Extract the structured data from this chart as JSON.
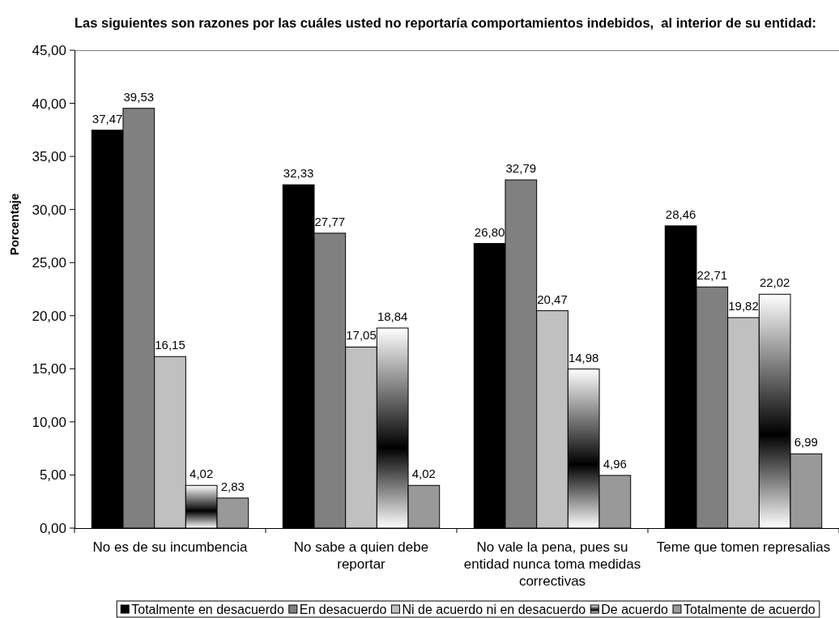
{
  "chart_data": {
    "type": "bar",
    "title": "Las siguientes son razones por las cuáles usted no reportaría comportamientos indebidos,  al interior de su entidad:",
    "ylabel": "Porcentaje",
    "categories": [
      "No es de su incumbencia",
      "No sabe a quien debe reportar",
      "No vale la pena, pues su entidad nunca toma medidas correctivas",
      "Teme que tomen represalias"
    ],
    "series": [
      {
        "name": "Totalmente en desacuerdo",
        "color": "#000000",
        "values": [
          37.47,
          32.33,
          26.8,
          28.46
        ],
        "value_labels": [
          "37,47",
          "32,33",
          "26,80",
          "28,46"
        ]
      },
      {
        "name": "En desacuerdo",
        "color": "#808080",
        "values": [
          39.53,
          27.77,
          32.79,
          22.71
        ],
        "value_labels": [
          "39,53",
          "27,77",
          "32,79",
          "22,71"
        ]
      },
      {
        "name": "Ni de acuerdo ni en desacuerdo",
        "color": "#c0c0c0",
        "values": [
          16.15,
          17.05,
          20.47,
          19.82
        ],
        "value_labels": [
          "16,15",
          "17,05",
          "20,47",
          "19,82"
        ]
      },
      {
        "name": "De acuerdo",
        "color": "#000000",
        "values": [
          4.02,
          18.84,
          14.98,
          22.02
        ],
        "value_labels": [
          "4,02",
          "18,84",
          "14,98",
          "22,02"
        ]
      },
      {
        "name": "Totalmente de acuerdo",
        "color": "#999999",
        "values": [
          2.83,
          4.02,
          4.96,
          6.99
        ],
        "value_labels": [
          "2,83",
          "4,02",
          "4,96",
          "6,99"
        ]
      }
    ],
    "ylim": [
      0,
      45
    ],
    "yticks": [
      {
        "value": 0,
        "label": "0,00"
      },
      {
        "value": 5,
        "label": "5,00"
      },
      {
        "value": 10,
        "label": "10,00"
      },
      {
        "value": 15,
        "label": "15,00"
      },
      {
        "value": 20,
        "label": "20,00"
      },
      {
        "value": 25,
        "label": "25,00"
      },
      {
        "value": 30,
        "label": "30,00"
      },
      {
        "value": 35,
        "label": "35,00"
      },
      {
        "value": 40,
        "label": "40,00"
      },
      {
        "value": 45,
        "label": "45,00"
      }
    ],
    "legend": "bottom"
  }
}
